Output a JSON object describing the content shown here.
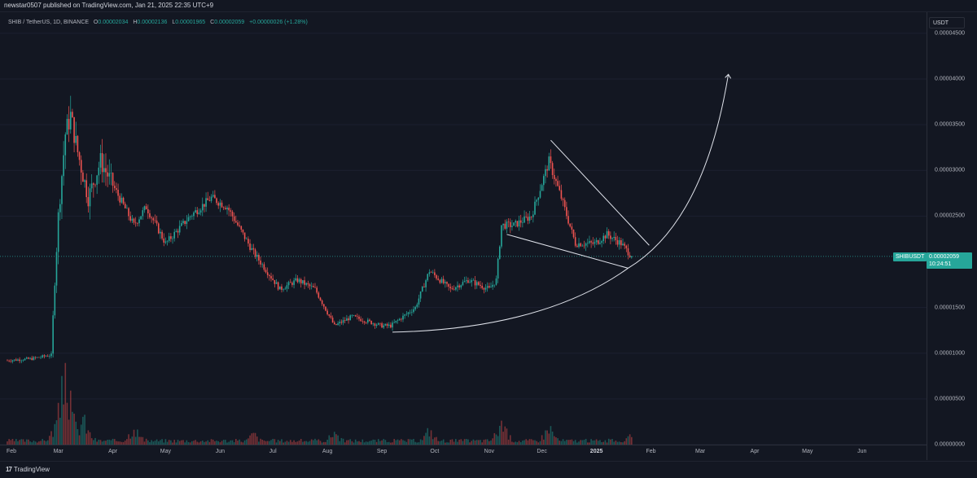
{
  "header": {
    "publish_line": "newstar0507 published on TradingView.com, Jan 21, 2025 22:35 UTC+9"
  },
  "legend": {
    "pair": "SHIB / TetherUS, 1D, BINANCE",
    "open_label": "O",
    "open": "0.00002034",
    "high_label": "H",
    "high": "0.00002136",
    "low_label": "L",
    "low": "0.00001965",
    "close_label": "C",
    "close": "0.00002059",
    "change": "+0.00000026 (+1.28%)"
  },
  "currency": "USDT",
  "price_axis": {
    "ticks": [
      "0.00004500",
      "0.00004000",
      "0.00003500",
      "0.00003000",
      "0.00002500",
      "0.00001500",
      "0.00001000",
      "0.00000500",
      "0.00000000"
    ]
  },
  "last_price": {
    "symbol": "SHIBUSDT",
    "price": "0.00002059",
    "countdown": "10:24:51"
  },
  "time_axis": {
    "labels": [
      "Feb",
      "Mar",
      "Apr",
      "May",
      "Jun",
      "Jul",
      "Aug",
      "Sep",
      "Oct",
      "Nov",
      "Dec",
      "2025",
      "Feb",
      "Mar",
      "Apr",
      "May",
      "Jun"
    ]
  },
  "footer": {
    "logo_mark": "17",
    "brand": "TradingView"
  },
  "colors": {
    "background": "#131722",
    "up": "#26a69a",
    "down": "#ef5350",
    "drawings": "#e0e3eb",
    "grid": "#1c2030"
  },
  "chart_data": {
    "type": "candlestick",
    "symbol": "SHIB / TetherUS",
    "interval": "1D",
    "exchange": "BINANCE",
    "currency": "USDT",
    "ylim": [
      0.0,
      4.73e-05
    ],
    "y_ticks": [
      0.0,
      5e-06,
      1e-05,
      1.5e-05,
      2.5e-05,
      3e-05,
      3.5e-05,
      4e-05,
      4.5e-05
    ],
    "x_labels": [
      "Feb",
      "Mar",
      "Apr",
      "May",
      "Jun",
      "Jul",
      "Aug",
      "Sep",
      "Oct",
      "Nov",
      "Dec",
      "2025",
      "Feb",
      "Mar",
      "Apr",
      "May",
      "Jun"
    ],
    "price_path": [
      [
        "2024-02-01",
        9.2e-06
      ],
      [
        "2024-02-15",
        9.4e-06
      ],
      [
        "2024-02-26",
        9.8e-06
      ],
      [
        "2024-02-28",
        1.8e-05
      ],
      [
        "2024-03-01",
        2.5e-05
      ],
      [
        "2024-03-05",
        3.4e-05
      ],
      [
        "2024-03-08",
        3.6e-05
      ],
      [
        "2024-03-12",
        3.2e-05
      ],
      [
        "2024-03-18",
        2.7e-05
      ],
      [
        "2024-03-25",
        3.1e-05
      ],
      [
        "2024-04-02",
        2.8e-05
      ],
      [
        "2024-04-13",
        2.4e-05
      ],
      [
        "2024-04-20",
        2.6e-05
      ],
      [
        "2024-05-01",
        2.2e-05
      ],
      [
        "2024-05-15",
        2.5e-05
      ],
      [
        "2024-05-27",
        2.7e-05
      ],
      [
        "2024-06-05",
        2.6e-05
      ],
      [
        "2024-06-20",
        2.1e-05
      ],
      [
        "2024-07-05",
        1.7e-05
      ],
      [
        "2024-07-15",
        1.8e-05
      ],
      [
        "2024-07-25",
        1.7e-05
      ],
      [
        "2024-08-05",
        1.3e-05
      ],
      [
        "2024-08-15",
        1.4e-05
      ],
      [
        "2024-09-01",
        1.3e-05
      ],
      [
        "2024-09-06",
        1.3e-05
      ],
      [
        "2024-09-20",
        1.5e-05
      ],
      [
        "2024-09-28",
        1.9e-05
      ],
      [
        "2024-10-10",
        1.7e-05
      ],
      [
        "2024-10-20",
        1.8e-05
      ],
      [
        "2024-11-01",
        1.7e-05
      ],
      [
        "2024-11-05",
        1.8e-05
      ],
      [
        "2024-11-08",
        2.4e-05
      ],
      [
        "2024-11-15",
        2.4e-05
      ],
      [
        "2024-11-25",
        2.5e-05
      ],
      [
        "2024-12-05",
        3.1e-05
      ],
      [
        "2024-12-12",
        2.7e-05
      ],
      [
        "2024-12-20",
        2.2e-05
      ],
      [
        "2024-12-31",
        2.2e-05
      ],
      [
        "2025-01-07",
        2.3e-05
      ],
      [
        "2025-01-15",
        2.2e-05
      ],
      [
        "2025-01-21",
        2.059e-05
      ]
    ],
    "volume_scale": [
      0,
      1
    ],
    "volume_peaks": [
      [
        "2024-03-05",
        1.0
      ],
      [
        "2024-03-15",
        0.35
      ],
      [
        "2024-04-13",
        0.25
      ],
      [
        "2024-06-20",
        0.15
      ],
      [
        "2024-08-05",
        0.18
      ],
      [
        "2024-09-28",
        0.2
      ],
      [
        "2024-11-08",
        0.3
      ],
      [
        "2024-12-05",
        0.25
      ],
      [
        "2025-01-21",
        0.12
      ]
    ],
    "drawings": [
      {
        "type": "upper-trendline",
        "points": [
          [
            "2024-12-06",
            3.33e-05
          ],
          [
            "2025-01-31",
            2.18e-05
          ]
        ]
      },
      {
        "type": "lower-trendline",
        "points": [
          [
            "2024-11-11",
            2.3e-05
          ],
          [
            "2025-01-19",
            1.93e-05
          ]
        ]
      },
      {
        "type": "parabolic-curve-arrow",
        "points": [
          [
            "2024-09-07",
            1.23e-05
          ],
          [
            "2025-01-19",
            1.93e-05
          ],
          [
            "2025-02-15",
            2.7e-05
          ],
          [
            "2025-03-17",
            4.05e-05
          ]
        ]
      }
    ]
  }
}
